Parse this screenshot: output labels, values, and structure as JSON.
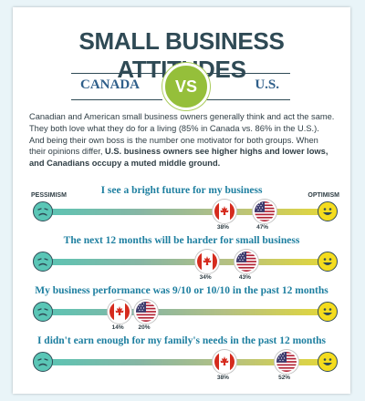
{
  "title": "SMALL BUSINESS ATTITUDES",
  "banner": {
    "left": "CANADA",
    "center": "VS",
    "right": "U.S."
  },
  "intro": {
    "text": "Canadian and American small business owners generally think and act the same. They both love what they do for a living (85% in Canada vs. 86% in the U.S.). And being their own boss is the number one motivator for both groups. When their opinions differ, ",
    "bold": "U.S. business owners see higher highs and lower lows, and Canadians occupy a muted middle ground."
  },
  "scale": {
    "left": "PESSIMISM",
    "right": "OPTIMISM"
  },
  "colors": {
    "title": "#2f4a55",
    "accent": "#95bf3a",
    "question": "#1e7fa0",
    "pessimism": "#5ac6b6",
    "optimism": "#f4dc1e",
    "canada_red": "#d52b1e",
    "us_blue": "#3c3b6e",
    "us_red": "#b22234"
  },
  "icons": {
    "pessimism": "sad-face-icon",
    "optimism": "happy-face-icon",
    "canada": "canada-flag-icon",
    "us": "us-flag-icon"
  },
  "rows": [
    {
      "question": "I see a bright future for my business",
      "canada": {
        "value": 38,
        "label": "38%"
      },
      "us": {
        "value": 47,
        "label": "47%"
      }
    },
    {
      "question": "The next 12 months will be harder for small business",
      "canada": {
        "value": 34,
        "label": "34%"
      },
      "us": {
        "value": 43,
        "label": "43%"
      }
    },
    {
      "question": "My business performance was 9/10 or 10/10 in the past 12 months",
      "canada": {
        "value": 14,
        "label": "14%"
      },
      "us": {
        "value": 20,
        "label": "20%"
      }
    },
    {
      "question": "I didn't earn enough for my family's needs in the past 12 months",
      "canada": {
        "value": 38,
        "label": "38%"
      },
      "us": {
        "value": 52,
        "label": "52%"
      }
    }
  ]
}
